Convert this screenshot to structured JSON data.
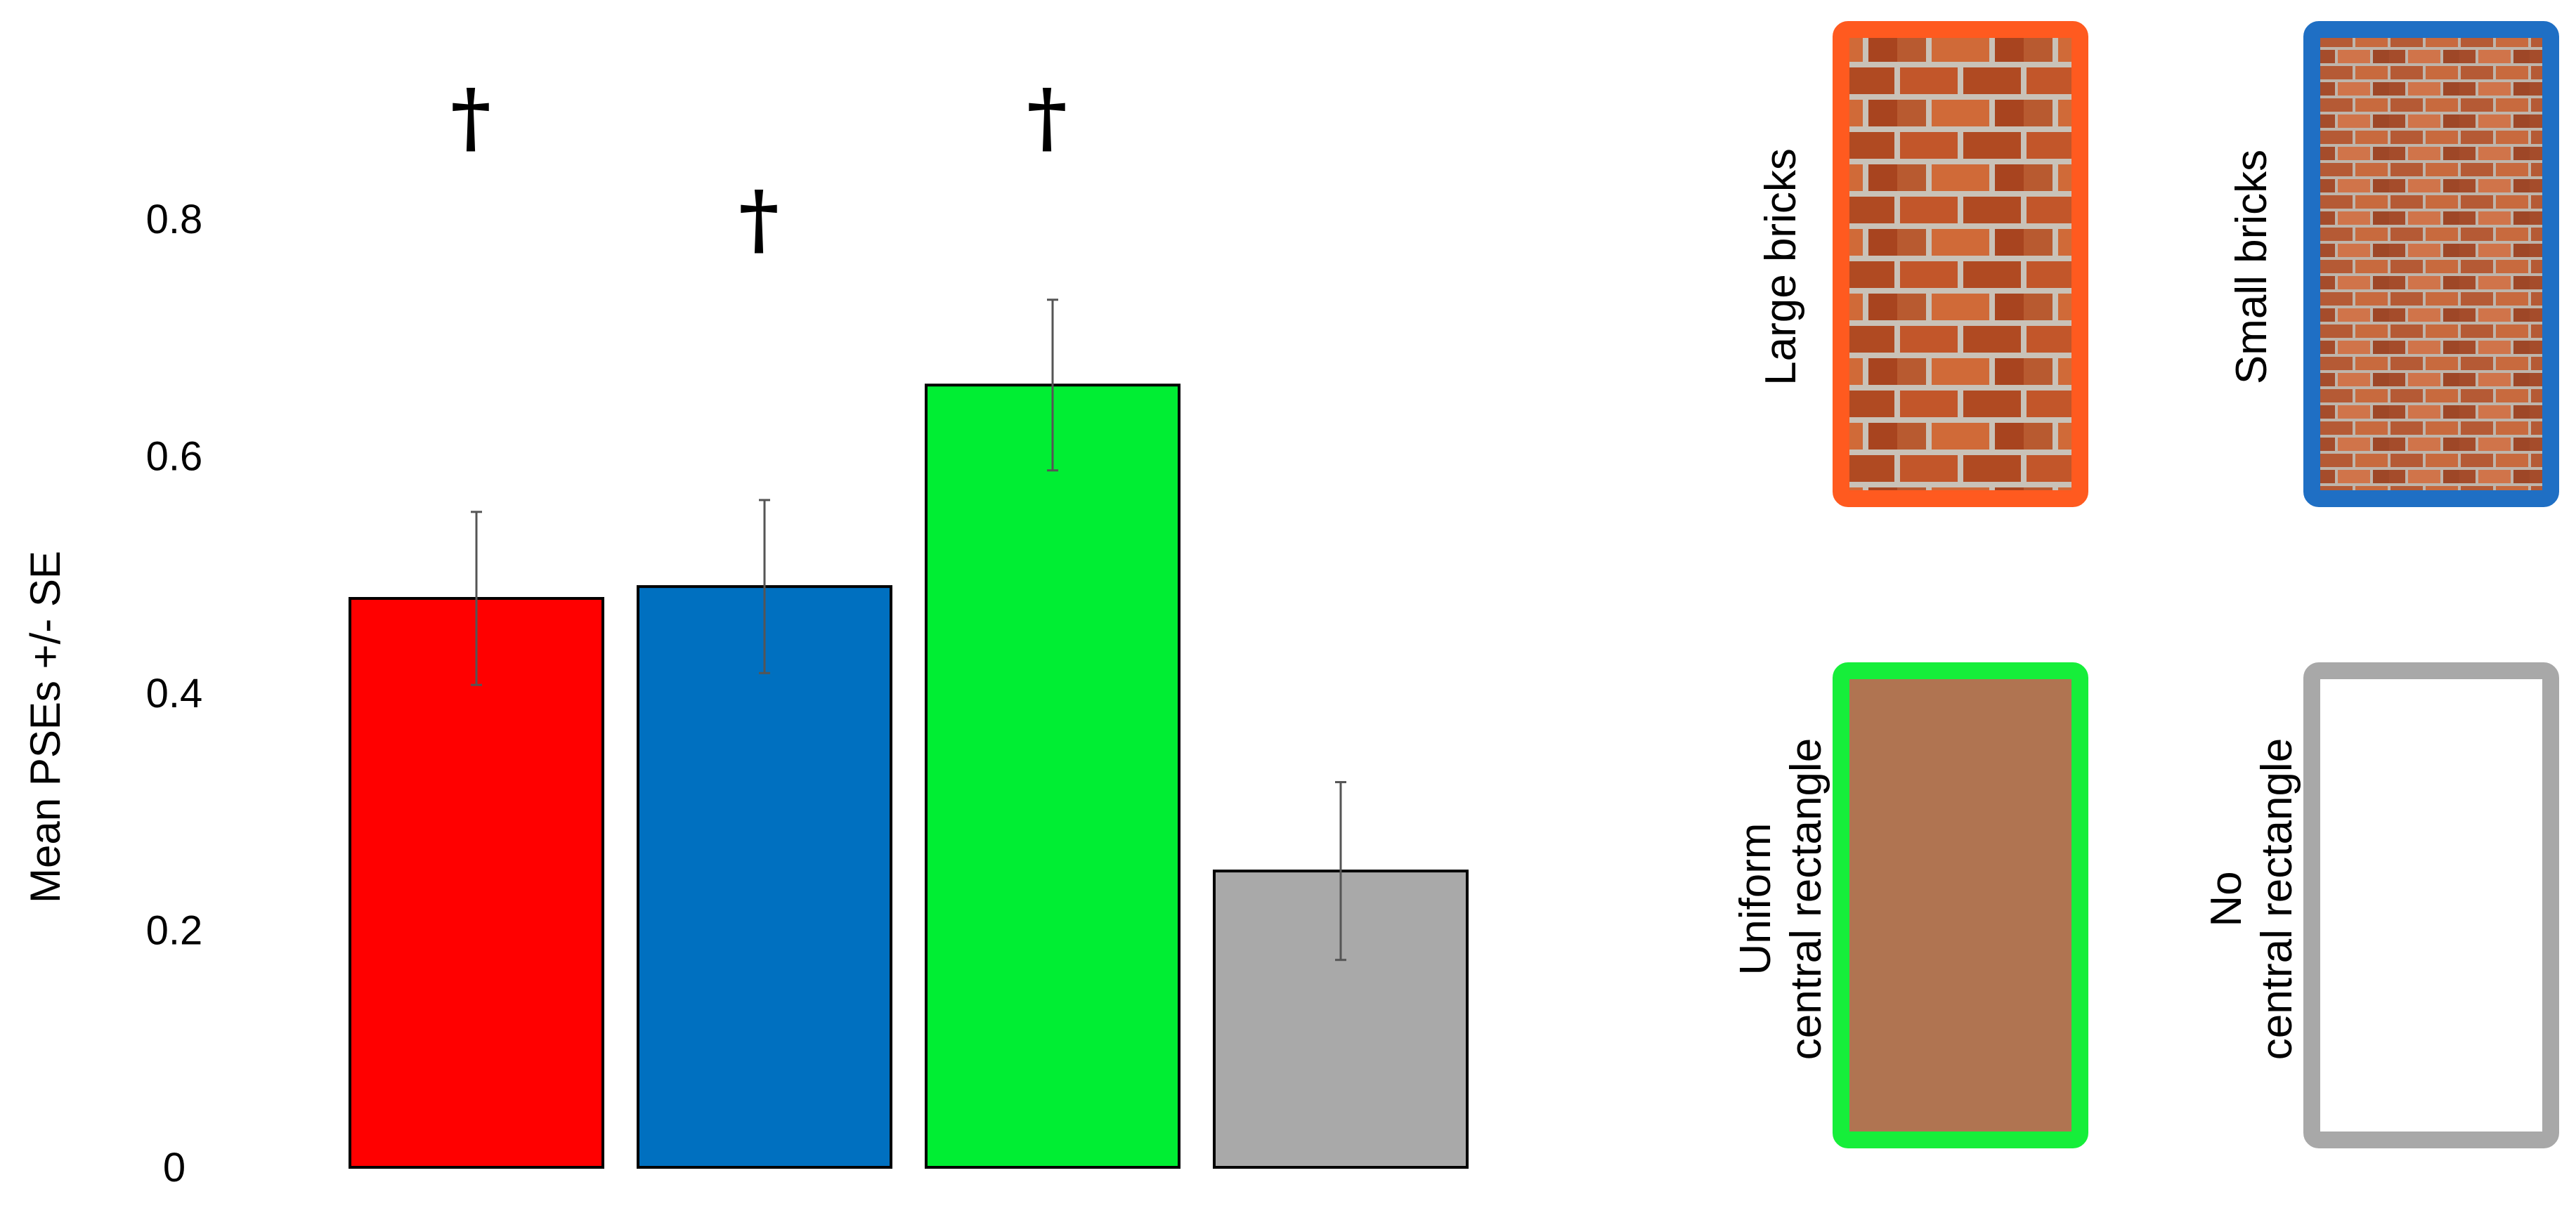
{
  "chart_data": {
    "type": "bar",
    "ylabel": "Mean PSEs +/- SE",
    "ylim": [
      0,
      0.8
    ],
    "yticks": [
      "0",
      "0.2",
      "0.4",
      "0.6",
      "0.8"
    ],
    "grid": false,
    "legend": "right",
    "series": [
      {
        "name": "Large bricks",
        "value": 0.48,
        "error": 0.073,
        "color": "#ff0000",
        "significant": true
      },
      {
        "name": "Small bricks",
        "value": 0.49,
        "error": 0.073,
        "color": "#0070c0",
        "significant": true
      },
      {
        "name": "Uniform central rectangle",
        "value": 0.66,
        "error": 0.072,
        "color": "#00ee33",
        "significant": true
      },
      {
        "name": "No central rectangle",
        "value": 0.25,
        "error": 0.075,
        "color": "#a9a9a9",
        "significant": false
      }
    ],
    "significance_marker": "†"
  },
  "legend": {
    "items": [
      {
        "label_lines": [
          "Large bricks"
        ],
        "fill": "large-bricks",
        "border": "#ff5a1f"
      },
      {
        "label_lines": [
          "Small bricks"
        ],
        "fill": "small-bricks",
        "border": "#1f6fc4"
      },
      {
        "label_lines": [
          "Uniform",
          "central rectangle"
        ],
        "fill": "#b07451",
        "border": "#16ee3a"
      },
      {
        "label_lines": [
          "No",
          "central rectangle"
        ],
        "fill": "#ffffff",
        "border": "#a8a8a8"
      }
    ]
  }
}
